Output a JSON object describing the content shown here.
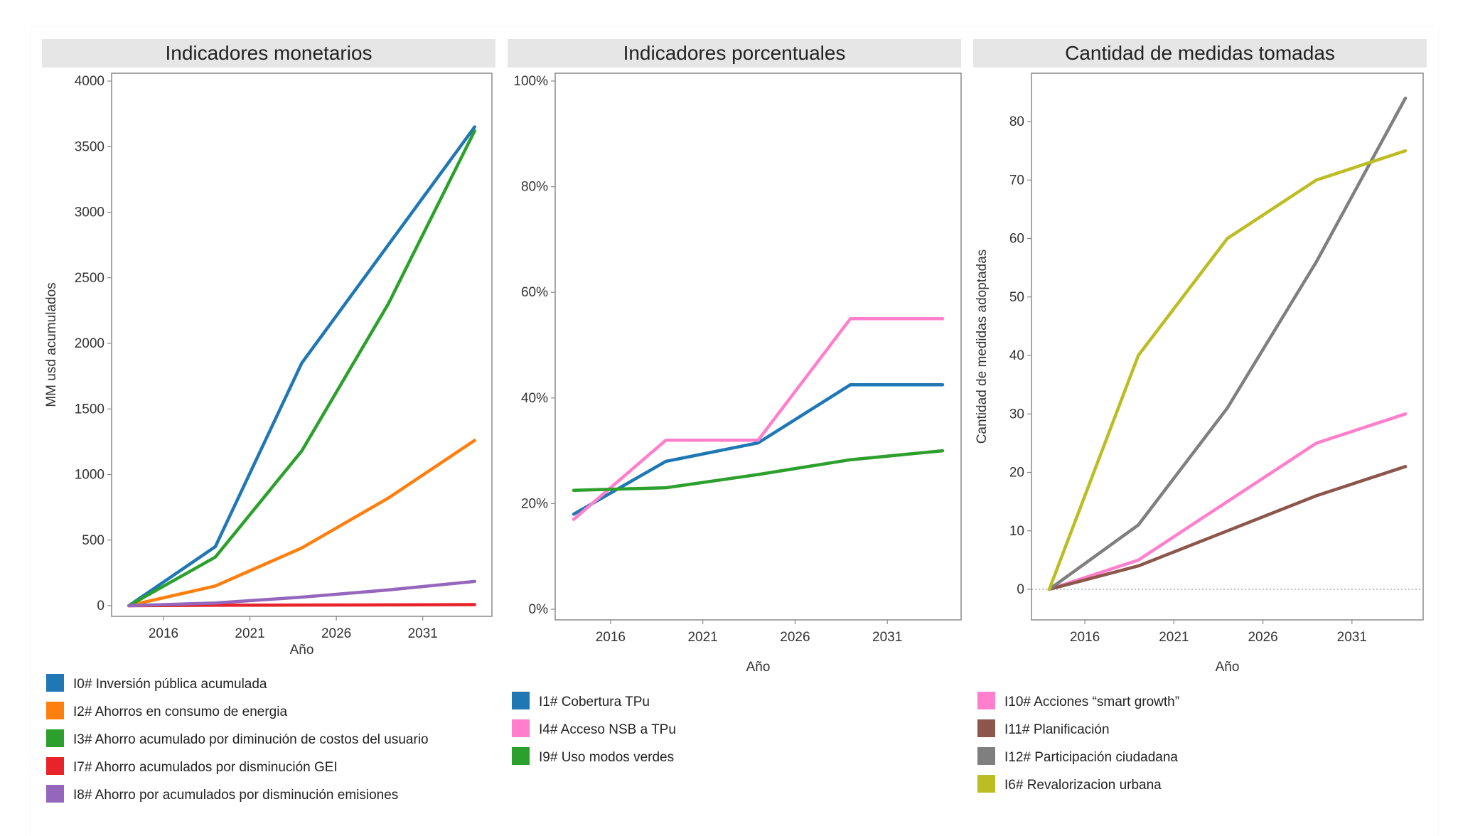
{
  "chart_data": [
    {
      "type": "line",
      "title": "Indicadores monetarios",
      "xlabel": "Año",
      "ylabel": "MM usd acumulados",
      "x_ticks": [
        2016,
        2021,
        2026,
        2031
      ],
      "xlim": [
        2013,
        2035
      ],
      "ylim": [
        0,
        4000
      ],
      "y_ticks": [
        {
          "value": 0,
          "label": "0"
        },
        {
          "value": 500,
          "label": "500"
        },
        {
          "value": 1000,
          "label": "1000"
        },
        {
          "value": 1500,
          "label": "1500"
        },
        {
          "value": 2000,
          "label": "2000"
        },
        {
          "value": 2500,
          "label": "2500"
        },
        {
          "value": 3000,
          "label": "3000"
        },
        {
          "value": 3500,
          "label": "3500"
        },
        {
          "value": 4000,
          "label": "4000"
        }
      ],
      "zero_line": false,
      "series": [
        {
          "name": "I0# Inversión pública acumulada",
          "color": "#1f77b4",
          "points": [
            [
              2014,
              0
            ],
            [
              2019,
              450
            ],
            [
              2024,
              1850
            ],
            [
              2034,
              3650
            ]
          ]
        },
        {
          "name": "I2# Ahorros en consumo de energia",
          "color": "#ff7f0e",
          "points": [
            [
              2014,
              0
            ],
            [
              2019,
              150
            ],
            [
              2024,
              440
            ],
            [
              2029,
              820
            ],
            [
              2034,
              1260
            ]
          ]
        },
        {
          "name": "I3# Ahorro acumulado por diminución de costos del usuario",
          "color": "#2ca02c",
          "points": [
            [
              2014,
              0
            ],
            [
              2019,
              370
            ],
            [
              2024,
              1180
            ],
            [
              2029,
              2300
            ],
            [
              2034,
              3620
            ]
          ]
        },
        {
          "name": "I7# Ahorro acumulados por disminución GEI",
          "color": "#e8232a",
          "points": [
            [
              2014,
              0
            ],
            [
              2019,
              3
            ],
            [
              2024,
              5
            ],
            [
              2029,
              6
            ],
            [
              2034,
              8
            ]
          ]
        },
        {
          "name": "I8# Ahorro por acumulados por disminución emisiones",
          "color": "#9467bd",
          "points": [
            [
              2014,
              0
            ],
            [
              2019,
              20
            ],
            [
              2024,
              65
            ],
            [
              2029,
              120
            ],
            [
              2034,
              185
            ]
          ]
        }
      ]
    },
    {
      "type": "line",
      "title": "Indicadores porcentuales",
      "xlabel": "Año",
      "ylabel": "",
      "x_ticks": [
        2016,
        2021,
        2026,
        2031
      ],
      "xlim": [
        2013,
        2035
      ],
      "ylim": [
        0,
        1
      ],
      "y_ticks": [
        {
          "value": 0,
          "label": "0%"
        },
        {
          "value": 0.2,
          "label": "20%"
        },
        {
          "value": 0.4,
          "label": "40%"
        },
        {
          "value": 0.6,
          "label": "60%"
        },
        {
          "value": 0.8,
          "label": "80%"
        },
        {
          "value": 1.0,
          "label": "100%"
        }
      ],
      "zero_line": false,
      "series": [
        {
          "name": "I1# Cobertura TPu",
          "color": "#1f77b4",
          "points": [
            [
              2014,
              0.18
            ],
            [
              2019,
              0.28
            ],
            [
              2024,
              0.315
            ],
            [
              2029,
              0.425
            ],
            [
              2034,
              0.425
            ]
          ]
        },
        {
          "name": "I4# Acceso NSB a TPu",
          "color": "#ff7fcc",
          "points": [
            [
              2014,
              0.17
            ],
            [
              2019,
              0.32
            ],
            [
              2024,
              0.32
            ],
            [
              2029,
              0.55
            ],
            [
              2034,
              0.55
            ]
          ]
        },
        {
          "name": "I9# Uso modos verdes",
          "color": "#2ca02c",
          "points": [
            [
              2014,
              0.225
            ],
            [
              2019,
              0.23
            ],
            [
              2024,
              0.255
            ],
            [
              2029,
              0.283
            ],
            [
              2034,
              0.3
            ]
          ]
        }
      ]
    },
    {
      "type": "line",
      "title": "Cantidad de medidas tomadas",
      "xlabel": "Año",
      "ylabel": "Cantidad de medidas adoptadas",
      "x_ticks": [
        2016,
        2021,
        2026,
        2031
      ],
      "xlim": [
        2013,
        2035
      ],
      "ylim": [
        -5,
        88
      ],
      "y_ticks": [
        {
          "value": 0,
          "label": "0"
        },
        {
          "value": 10,
          "label": "10"
        },
        {
          "value": 20,
          "label": "20"
        },
        {
          "value": 30,
          "label": "30"
        },
        {
          "value": 40,
          "label": "40"
        },
        {
          "value": 50,
          "label": "50"
        },
        {
          "value": 60,
          "label": "60"
        },
        {
          "value": 70,
          "label": "70"
        },
        {
          "value": 80,
          "label": "80"
        }
      ],
      "zero_line": true,
      "series": [
        {
          "name": "I10# Acciones “smart growth”",
          "color": "#ff7fcc",
          "points": [
            [
              2014,
              0
            ],
            [
              2019,
              5
            ],
            [
              2024,
              15
            ],
            [
              2029,
              25
            ],
            [
              2034,
              30
            ]
          ]
        },
        {
          "name": "I11# Planificación",
          "color": "#8c564b",
          "points": [
            [
              2014,
              0
            ],
            [
              2019,
              4
            ],
            [
              2024,
              10
            ],
            [
              2029,
              16
            ],
            [
              2034,
              21
            ]
          ]
        },
        {
          "name": "I12# Participación ciudadana",
          "color": "#7f7f7f",
          "points": [
            [
              2014,
              0
            ],
            [
              2019,
              11
            ],
            [
              2024,
              31
            ],
            [
              2029,
              56
            ],
            [
              2034,
              84
            ]
          ]
        },
        {
          "name": "I6# Revalorizacion urbana",
          "color": "#bcbd22",
          "points": [
            [
              2014,
              0
            ],
            [
              2019,
              40
            ],
            [
              2024,
              60
            ],
            [
              2029,
              70
            ],
            [
              2034,
              75
            ]
          ]
        }
      ]
    }
  ]
}
